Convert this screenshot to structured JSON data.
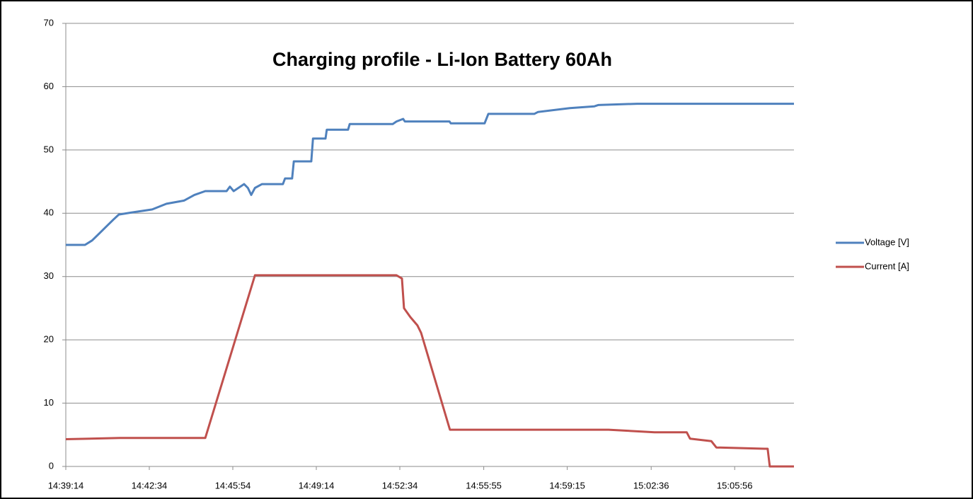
{
  "chart_data": {
    "type": "line",
    "title": "Charging profile   -   Li-Ion Battery 60Ah",
    "xlim": [
      "14:39:14",
      "15:08:18"
    ],
    "xticks": [
      "14:39:14",
      "14:42:34",
      "14:45:54",
      "14:49:14",
      "14:52:34",
      "14:55:55",
      "14:59:15",
      "15:02:36",
      "15:05:56"
    ],
    "ylim": [
      0,
      70
    ],
    "yticks": [
      0,
      10,
      20,
      30,
      40,
      50,
      60,
      70
    ],
    "grid": true,
    "legend": "right",
    "series": [
      {
        "name": "Voltage [V]",
        "color": "#4f81bd",
        "x": [
          "14:39:14",
          "14:40:00",
          "14:40:17",
          "14:40:34",
          "14:40:51",
          "14:41:08",
          "14:41:21",
          "14:41:50",
          "14:42:41",
          "14:43:15",
          "14:43:57",
          "14:44:22",
          "14:44:48",
          "14:45:39",
          "14:45:47",
          "14:45:56",
          "14:46:21",
          "14:46:30",
          "14:46:38",
          "14:46:47",
          "14:47:04",
          "14:47:54",
          "14:47:59",
          "14:48:16",
          "14:48:20",
          "14:49:02",
          "14:49:06",
          "14:49:36",
          "14:49:39",
          "14:50:30",
          "14:50:34",
          "14:52:17",
          "14:52:26",
          "14:52:42",
          "14:52:46",
          "14:54:33",
          "14:54:36",
          "14:55:57",
          "14:56:06",
          "14:57:56",
          "14:58:05",
          "14:59:21",
          "15:00:20",
          "15:00:29",
          "15:02:02",
          "15:08:18"
        ],
        "values": [
          35.0,
          35.0,
          35.7,
          36.8,
          37.9,
          39.0,
          39.8,
          40.1,
          40.6,
          41.5,
          42.0,
          42.9,
          43.5,
          43.5,
          44.2,
          43.5,
          44.6,
          44.0,
          42.9,
          44.0,
          44.6,
          44.6,
          45.5,
          45.5,
          48.2,
          48.2,
          51.8,
          51.8,
          53.2,
          53.2,
          54.1,
          54.1,
          54.5,
          54.9,
          54.5,
          54.5,
          54.2,
          54.2,
          55.7,
          55.7,
          56.0,
          56.6,
          56.9,
          57.1,
          57.3,
          57.3
        ]
      },
      {
        "name": "Current [A]",
        "color": "#c0504d",
        "x": [
          "14:39:14",
          "14:41:24",
          "14:44:48",
          "14:46:47",
          "14:52:26",
          "14:52:39",
          "14:52:44",
          "14:52:59",
          "14:53:16",
          "14:53:25",
          "14:54:34",
          "15:00:54",
          "15:02:44",
          "15:04:01",
          "15:04:09",
          "15:05:00",
          "15:05:12",
          "15:07:07",
          "15:07:15",
          "15:07:20",
          "15:08:18"
        ],
        "values": [
          4.3,
          4.5,
          4.5,
          30.2,
          30.2,
          29.7,
          25.0,
          23.6,
          22.3,
          21.1,
          5.8,
          5.8,
          5.4,
          5.4,
          4.4,
          4.0,
          3.0,
          2.8,
          2.8,
          0,
          0
        ]
      }
    ]
  }
}
